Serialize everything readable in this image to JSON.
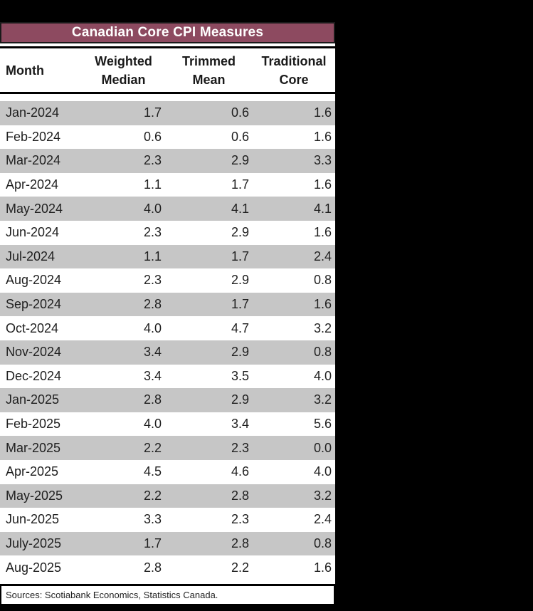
{
  "header": {
    "title": "Canadian Core CPI Measures"
  },
  "table": {
    "col_headers": [
      {
        "lines": [
          "Month"
        ]
      },
      {
        "lines": [
          "Weighted",
          "Median"
        ]
      },
      {
        "lines": [
          "Trimmed",
          "Mean"
        ]
      },
      {
        "lines": [
          "Traditional",
          "Core"
        ]
      }
    ],
    "rows": [
      {
        "month": "Jan-2024",
        "values": [
          "1.7",
          "0.6",
          "1.6"
        ]
      },
      {
        "month": "Feb-2024",
        "values": [
          "0.6",
          "0.6",
          "1.6"
        ]
      },
      {
        "month": "Mar-2024",
        "values": [
          "2.3",
          "2.9",
          "3.3"
        ]
      },
      {
        "month": "Apr-2024",
        "values": [
          "1.1",
          "1.7",
          "1.6"
        ]
      },
      {
        "month": "May-2024",
        "values": [
          "4.0",
          "4.1",
          "4.1"
        ]
      },
      {
        "month": "Jun-2024",
        "values": [
          "2.3",
          "2.9",
          "1.6"
        ]
      },
      {
        "month": "Jul-2024",
        "values": [
          "1.1",
          "1.7",
          "2.4"
        ]
      },
      {
        "month": "Aug-2024",
        "values": [
          "2.3",
          "2.9",
          "0.8"
        ]
      },
      {
        "month": "Sep-2024",
        "values": [
          "2.8",
          "1.7",
          "1.6"
        ]
      },
      {
        "month": "Oct-2024",
        "values": [
          "4.0",
          "4.7",
          "3.2"
        ]
      },
      {
        "month": "Nov-2024",
        "values": [
          "3.4",
          "2.9",
          "0.8"
        ]
      },
      {
        "month": "Dec-2024",
        "values": [
          "3.4",
          "3.5",
          "4.0"
        ]
      },
      {
        "month": "Jan-2025",
        "values": [
          "2.8",
          "2.9",
          "3.2"
        ]
      },
      {
        "month": "Feb-2025",
        "values": [
          "4.0",
          "3.4",
          "5.6"
        ]
      },
      {
        "month": "Mar-2025",
        "values": [
          "2.2",
          "2.3",
          "0.0"
        ]
      },
      {
        "month": "Apr-2025",
        "values": [
          "4.5",
          "4.6",
          "4.0"
        ]
      },
      {
        "month": "May-2025",
        "values": [
          "2.2",
          "2.8",
          "3.2"
        ]
      },
      {
        "month": "Jun-2025",
        "values": [
          "3.3",
          "2.3",
          "2.4"
        ]
      },
      {
        "month": "July-2025",
        "values": [
          "1.7",
          "2.8",
          "0.8"
        ]
      },
      {
        "month": "Aug-2025",
        "values": [
          "2.8",
          "2.2",
          "1.6"
        ]
      }
    ]
  },
  "footer": {
    "sources_text": "Sources: Scotiabank Economics, Statistics Canada."
  },
  "colors": {
    "background": "#000000",
    "title_bg": "#8d4a60",
    "title_text": "#ffffff",
    "row_alt_bg": "#c6c6c6",
    "rule": "#000000"
  },
  "chart_data": {
    "type": "table",
    "title": "Canadian Core CPI Measures",
    "columns": [
      "Month",
      "Weighted Median",
      "Trimmed Mean",
      "Traditional Core"
    ],
    "rows": [
      [
        "Jan-2024",
        1.7,
        0.6,
        1.6
      ],
      [
        "Feb-2024",
        0.6,
        0.6,
        1.6
      ],
      [
        "Mar-2024",
        2.3,
        2.9,
        3.3
      ],
      [
        "Apr-2024",
        1.1,
        1.7,
        1.6
      ],
      [
        "May-2024",
        4.0,
        4.1,
        4.1
      ],
      [
        "Jun-2024",
        2.3,
        2.9,
        1.6
      ],
      [
        "Jul-2024",
        1.1,
        1.7,
        2.4
      ],
      [
        "Aug-2024",
        2.3,
        2.9,
        0.8
      ],
      [
        "Sep-2024",
        2.8,
        1.7,
        1.6
      ],
      [
        "Oct-2024",
        4.0,
        4.7,
        3.2
      ],
      [
        "Nov-2024",
        3.4,
        2.9,
        0.8
      ],
      [
        "Dec-2024",
        3.4,
        3.5,
        4.0
      ],
      [
        "Jan-2025",
        2.8,
        2.9,
        3.2
      ],
      [
        "Feb-2025",
        4.0,
        3.4,
        5.6
      ],
      [
        "Mar-2025",
        2.2,
        2.3,
        0.0
      ],
      [
        "Apr-2025",
        4.5,
        4.6,
        4.0
      ],
      [
        "May-2025",
        2.2,
        2.8,
        3.2
      ],
      [
        "Jun-2025",
        3.3,
        2.3,
        2.4
      ],
      [
        "July-2025",
        1.7,
        2.8,
        0.8
      ],
      [
        "Aug-2025",
        2.8,
        2.2,
        1.6
      ]
    ],
    "source_note": "Sources: Scotiabank Economics, Statistics Canada.",
    "striped_rows": true,
    "first_stripe_color": "#c6c6c6"
  }
}
